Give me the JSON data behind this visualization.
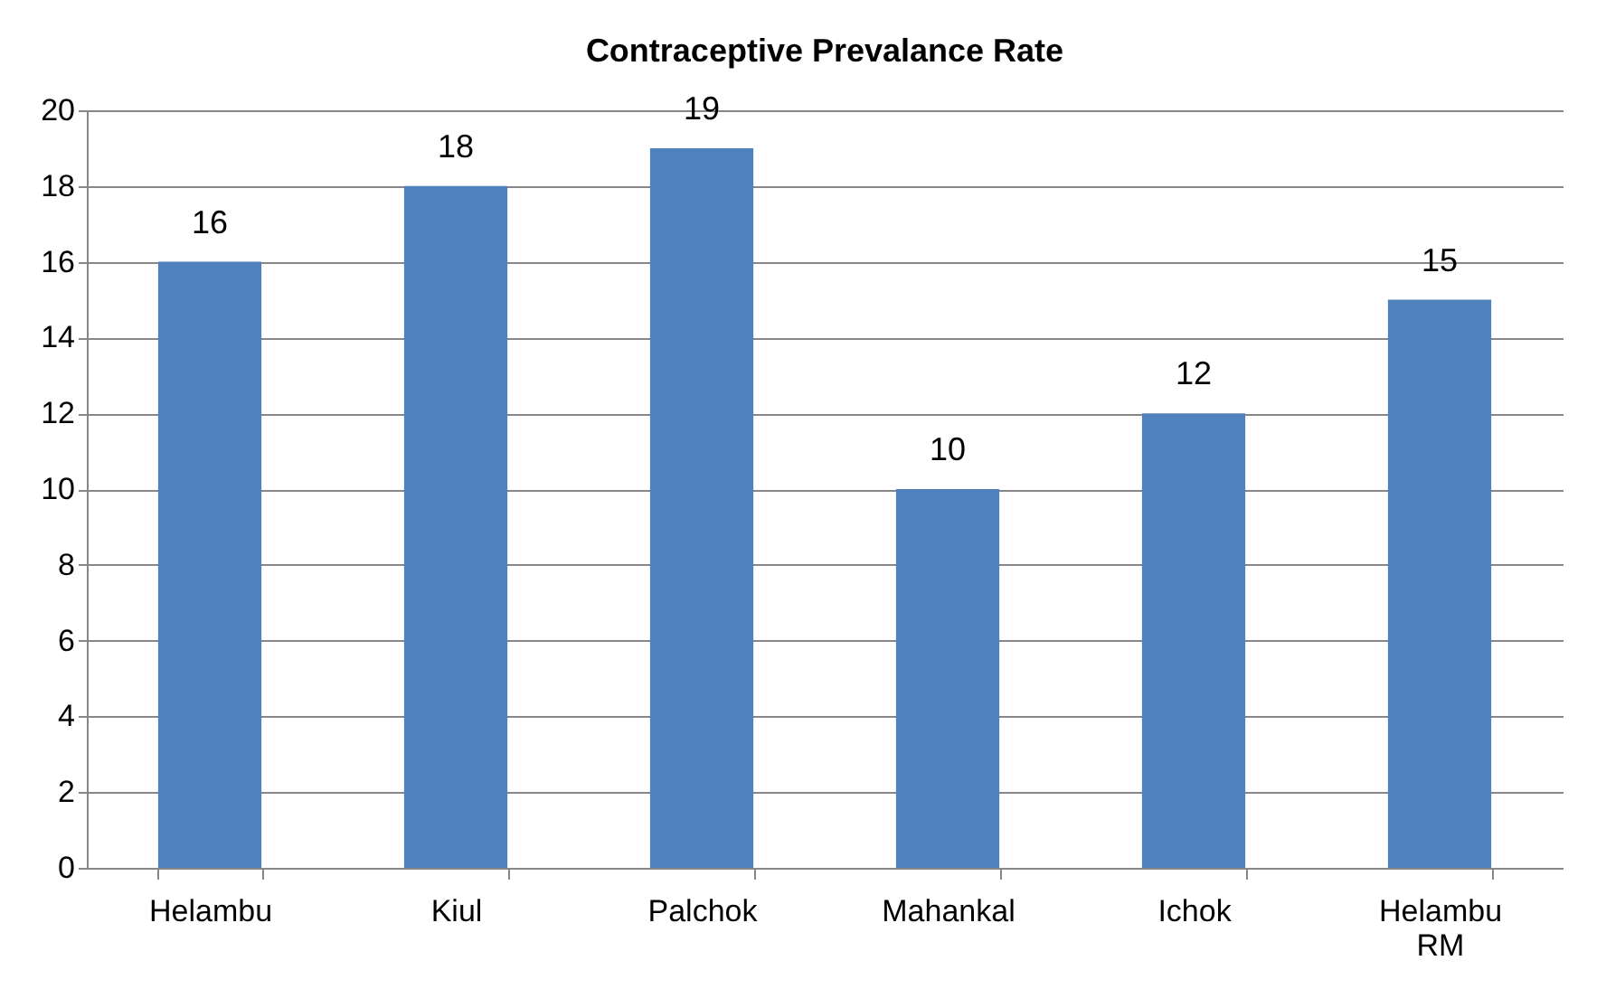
{
  "chart_data": {
    "type": "bar",
    "title": "Contraceptive Prevalance Rate",
    "categories": [
      "Helambu",
      "Kiul",
      "Palchok",
      "Mahankal",
      "Ichok",
      "Helambu RM"
    ],
    "values": [
      16,
      18,
      19,
      10,
      12,
      15
    ],
    "color": "#4f81bd",
    "ylim": [
      0,
      20
    ],
    "yticks": [
      0,
      2,
      4,
      6,
      8,
      10,
      12,
      14,
      16,
      18,
      20
    ],
    "grid": "y",
    "data_labels": true
  }
}
